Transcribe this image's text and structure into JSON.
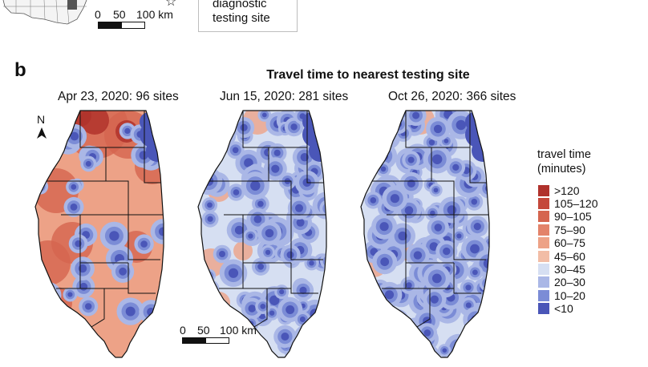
{
  "panel_a_top": {
    "scale_ticks": [
      "0",
      "50",
      "100 km"
    ],
    "legend_text": "diagnostic\ntesting site"
  },
  "panel_label": "b",
  "title": "Travel time to nearest testing site",
  "maps": [
    {
      "title": "Apr 23, 2020: 96 sites",
      "sites": 96
    },
    {
      "title": "Jun 15, 2020: 281 sites",
      "sites": 281
    },
    {
      "title": "Oct 26, 2020: 366 sites",
      "sites": 366
    }
  ],
  "north_label": "N",
  "scale_bar": {
    "ticks": [
      "0",
      "50",
      "100 km"
    ]
  },
  "legend": {
    "title_line1": "travel time",
    "title_line2": "(minutes)",
    "items": [
      {
        "label": ">120",
        "color": "#b0322c"
      },
      {
        "label": "105–120",
        "color": "#c4483b"
      },
      {
        "label": "90–105",
        "color": "#d5654f"
      },
      {
        "label": "75–90",
        "color": "#e3836a"
      },
      {
        "label": "60–75",
        "color": "#eda287"
      },
      {
        "label": "45–60",
        "color": "#f2bda6"
      },
      {
        "label": "30–45",
        "color": "#d6dff2"
      },
      {
        "label": "20–30",
        "color": "#aab7e6"
      },
      {
        "label": "10–20",
        "color": "#7b8cd6"
      },
      {
        "label": "<10",
        "color": "#4a56b8"
      }
    ]
  }
}
